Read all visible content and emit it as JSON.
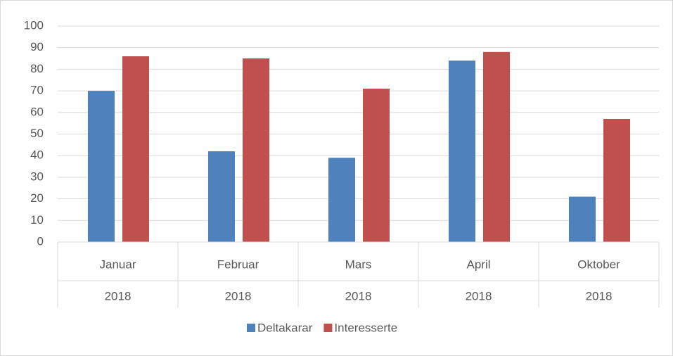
{
  "chart_data": {
    "type": "bar",
    "categories": [
      "Januar",
      "Februar",
      "Mars",
      "April",
      "Oktober"
    ],
    "category_groups": [
      "2018",
      "2018",
      "2018",
      "2018",
      "2018"
    ],
    "series": [
      {
        "name": "Deltakarar",
        "color": "#4f81bd",
        "values": [
          70,
          42,
          39,
          84,
          21
        ]
      },
      {
        "name": "Interesserte",
        "color": "#c0504d",
        "values": [
          86,
          85,
          71,
          88,
          57
        ]
      }
    ],
    "ylim": [
      0,
      100
    ],
    "yticks": [
      0,
      10,
      20,
      30,
      40,
      50,
      60,
      70,
      80,
      90,
      100
    ],
    "grid": true,
    "legend": "bottom"
  }
}
